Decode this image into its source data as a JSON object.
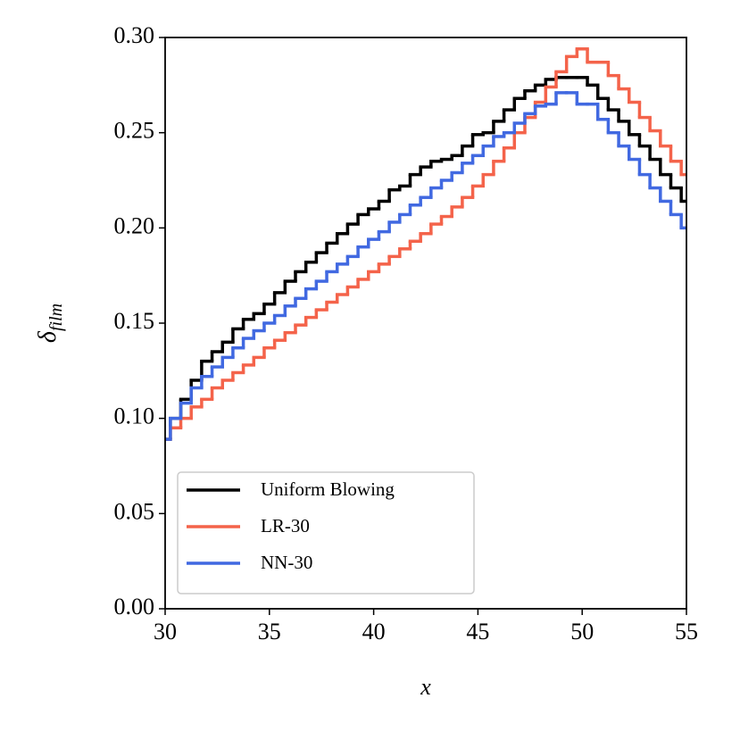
{
  "chart_data": {
    "type": "line",
    "drawstyle": "steps-mid",
    "xlabel": "x",
    "ylabel": {
      "symbol": "δ",
      "subscript": "film"
    },
    "x": [
      30,
      30.5,
      31,
      31.5,
      32,
      32.5,
      33,
      33.5,
      34,
      34.5,
      35,
      35.5,
      36,
      36.5,
      37,
      37.5,
      38,
      38.5,
      39,
      39.5,
      40,
      40.5,
      41,
      41.5,
      42,
      42.5,
      43,
      43.5,
      44,
      44.5,
      45,
      45.5,
      46,
      46.5,
      47,
      47.5,
      48,
      48.5,
      49,
      49.5,
      50,
      50.5,
      51,
      51.5,
      52,
      52.5,
      53,
      53.5,
      54,
      54.5,
      55
    ],
    "series": [
      {
        "name": "Uniform Blowing",
        "color": "#000000",
        "values": [
          0.089,
          0.1,
          0.11,
          0.12,
          0.13,
          0.135,
          0.14,
          0.147,
          0.152,
          0.155,
          0.16,
          0.166,
          0.172,
          0.177,
          0.182,
          0.187,
          0.192,
          0.197,
          0.202,
          0.207,
          0.21,
          0.214,
          0.22,
          0.222,
          0.228,
          0.232,
          0.235,
          0.236,
          0.238,
          0.243,
          0.249,
          0.25,
          0.256,
          0.262,
          0.268,
          0.272,
          0.275,
          0.278,
          0.279,
          0.279,
          0.279,
          0.275,
          0.268,
          0.262,
          0.256,
          0.249,
          0.243,
          0.236,
          0.228,
          0.221,
          0.214
        ]
      },
      {
        "name": "LR-30",
        "color": "#f4634a",
        "values": [
          0.089,
          0.095,
          0.1,
          0.106,
          0.11,
          0.116,
          0.12,
          0.124,
          0.128,
          0.132,
          0.137,
          0.141,
          0.145,
          0.149,
          0.153,
          0.157,
          0.161,
          0.165,
          0.169,
          0.173,
          0.177,
          0.181,
          0.185,
          0.189,
          0.193,
          0.197,
          0.202,
          0.206,
          0.211,
          0.216,
          0.222,
          0.228,
          0.235,
          0.242,
          0.25,
          0.258,
          0.266,
          0.274,
          0.282,
          0.29,
          0.294,
          0.287,
          0.287,
          0.28,
          0.273,
          0.266,
          0.258,
          0.251,
          0.243,
          0.235,
          0.228
        ]
      },
      {
        "name": "NN-30",
        "color": "#4169e1",
        "values": [
          0.089,
          0.1,
          0.108,
          0.116,
          0.122,
          0.127,
          0.132,
          0.137,
          0.142,
          0.146,
          0.15,
          0.154,
          0.159,
          0.163,
          0.168,
          0.172,
          0.177,
          0.181,
          0.185,
          0.19,
          0.194,
          0.198,
          0.203,
          0.207,
          0.212,
          0.216,
          0.221,
          0.225,
          0.229,
          0.234,
          0.238,
          0.243,
          0.248,
          0.25,
          0.255,
          0.26,
          0.264,
          0.265,
          0.271,
          0.271,
          0.265,
          0.265,
          0.257,
          0.25,
          0.243,
          0.236,
          0.228,
          0.221,
          0.214,
          0.207,
          0.2
        ]
      }
    ],
    "xlim": [
      30,
      55
    ],
    "xticks": [
      30,
      35,
      40,
      45,
      50,
      55
    ],
    "ylim": [
      0,
      0.3
    ],
    "yticks": [
      {
        "value": 0,
        "label": "0.00"
      },
      {
        "value": 0.05,
        "label": "0.05"
      },
      {
        "value": 0.1,
        "label": "0.10"
      },
      {
        "value": 0.15,
        "label": "0.15"
      },
      {
        "value": 0.2,
        "label": "0.20"
      },
      {
        "value": 0.25,
        "label": "0.25"
      },
      {
        "value": 0.3,
        "label": "0.30"
      }
    ],
    "grid": false,
    "legend": "lower left"
  }
}
